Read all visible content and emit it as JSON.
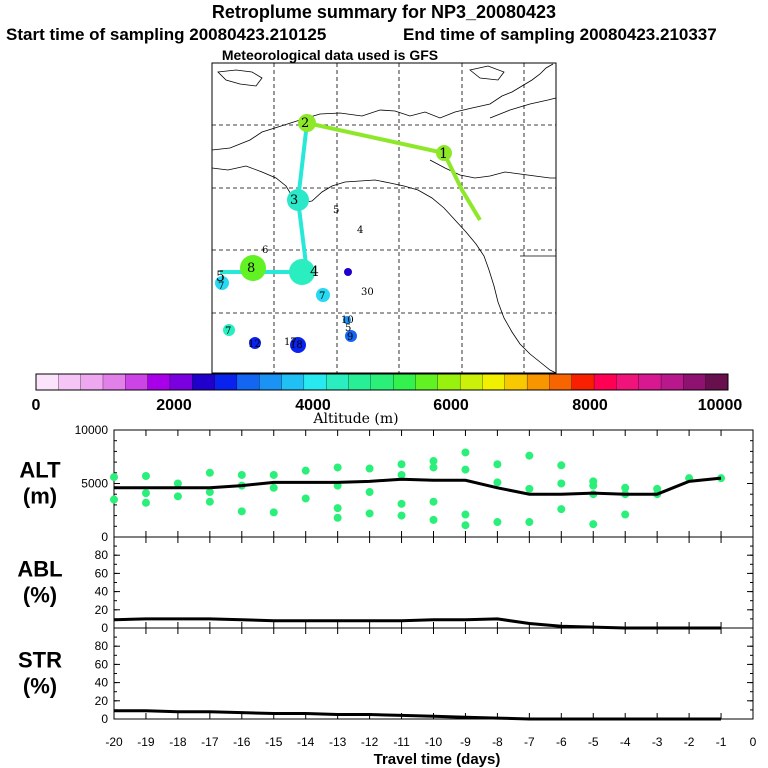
{
  "header": {
    "title": "Retroplume summary for NP3_20080423",
    "start_label": "Start time of sampling 20080423.210125",
    "end_label": "End time of sampling 20080423.210337",
    "met_label": "Meteorological data used is GFS"
  },
  "colorbar": {
    "label": "Altitude (m)",
    "ticks": [
      "0",
      "2000",
      "4000",
      "6000",
      "8000",
      "10000"
    ],
    "colors": [
      "#fbe3fb",
      "#f5c6f5",
      "#eda8ef",
      "#e080e8",
      "#cc44e6",
      "#a800e8",
      "#7a00e0",
      "#2200cc",
      "#0a22ee",
      "#1266f2",
      "#1a93f4",
      "#20c0f4",
      "#28e8f0",
      "#2aeec0",
      "#28ee95",
      "#2af07a",
      "#34f24e",
      "#62f224",
      "#98f20e",
      "#cbf00a",
      "#f0f000",
      "#f8c800",
      "#f89600",
      "#f86400",
      "#f82000",
      "#ff0055",
      "#f0147a",
      "#d81890",
      "#b8188c",
      "#901270",
      "#68104e"
    ]
  },
  "map": {
    "trajectory_labels": [
      "1",
      "2",
      "3",
      "4",
      "5",
      "8"
    ],
    "scatter_labels": [
      "4",
      "5",
      "6",
      "7",
      "7",
      "7",
      "30",
      "10",
      "5",
      "9",
      "17",
      "18",
      "12"
    ]
  },
  "colors": {
    "alt_points": "#2af07a",
    "line": "#000000",
    "path_green": "#8ee82a",
    "path_cyan": "#28e8d8"
  },
  "chart_data": [
    {
      "type": "line",
      "name": "ALT",
      "ylabel": "ALT (m)",
      "ylabel_lines": [
        "ALT",
        "(m)"
      ],
      "ylim": [
        0,
        10000
      ],
      "yticks": [
        "10000",
        "5000",
        "0"
      ],
      "x": [
        -20,
        -19,
        -18,
        -17,
        -16,
        -15,
        -14,
        -13,
        -12,
        -11,
        -10,
        -9,
        -8,
        -7,
        -6,
        -5,
        -4,
        -3,
        -2,
        -1
      ],
      "values": [
        4600,
        4600,
        4600,
        4600,
        4800,
        5100,
        5100,
        5100,
        5200,
        5400,
        5300,
        5300,
        4600,
        4000,
        4000,
        4100,
        4000,
        4000,
        5200,
        5500
      ],
      "scatter": [
        [
          -20,
          5600
        ],
        [
          -20,
          3500
        ],
        [
          -19,
          5700
        ],
        [
          -19,
          4100
        ],
        [
          -19,
          3200
        ],
        [
          -18,
          5000
        ],
        [
          -18,
          3800
        ],
        [
          -17,
          6000
        ],
        [
          -17,
          4200
        ],
        [
          -17,
          3300
        ],
        [
          -16,
          5800
        ],
        [
          -16,
          4800
        ],
        [
          -16,
          2400
        ],
        [
          -15,
          5800
        ],
        [
          -15,
          4600
        ],
        [
          -15,
          2300
        ],
        [
          -14,
          6200
        ],
        [
          -14,
          3600
        ],
        [
          -13,
          6500
        ],
        [
          -13,
          4800
        ],
        [
          -13,
          2700
        ],
        [
          -13,
          1800
        ],
        [
          -12,
          6400
        ],
        [
          -12,
          4200
        ],
        [
          -12,
          2200
        ],
        [
          -11,
          6800
        ],
        [
          -11,
          5800
        ],
        [
          -11,
          3100
        ],
        [
          -11,
          2000
        ],
        [
          -10,
          7100
        ],
        [
          -10,
          6500
        ],
        [
          -10,
          3300
        ],
        [
          -10,
          1600
        ],
        [
          -9,
          7900
        ],
        [
          -9,
          6300
        ],
        [
          -9,
          2100
        ],
        [
          -9,
          1100
        ],
        [
          -8,
          6800
        ],
        [
          -8,
          5100
        ],
        [
          -8,
          1400
        ],
        [
          -7,
          7600
        ],
        [
          -7,
          4500
        ],
        [
          -7,
          1400
        ],
        [
          -6,
          6700
        ],
        [
          -6,
          5000
        ],
        [
          -6,
          2600
        ],
        [
          -5,
          5200
        ],
        [
          -5,
          4800
        ],
        [
          -5,
          4000
        ],
        [
          -5,
          1200
        ],
        [
          -4,
          4600
        ],
        [
          -4,
          4000
        ],
        [
          -4,
          2100
        ],
        [
          -3,
          4500
        ],
        [
          -3,
          4000
        ],
        [
          -2,
          5500
        ],
        [
          -1,
          5500
        ]
      ]
    },
    {
      "type": "line",
      "name": "ABL",
      "ylabel": "ABL (%)",
      "ylabel_lines": [
        "ABL",
        "(%)"
      ],
      "ylim": [
        0,
        100
      ],
      "yticks": [
        "80",
        "60",
        "40",
        "20",
        "0"
      ],
      "x": [
        -20,
        -19,
        -18,
        -17,
        -16,
        -15,
        -14,
        -13,
        -12,
        -11,
        -10,
        -9,
        -8,
        -7,
        -6,
        -5,
        -4,
        -3,
        -2,
        -1
      ],
      "values": [
        9,
        10,
        10,
        10,
        9,
        8,
        8,
        8,
        8,
        8,
        9,
        9,
        10,
        5,
        2,
        1,
        0,
        0,
        0,
        0
      ]
    },
    {
      "type": "line",
      "name": "STR",
      "ylabel": "STR (%)",
      "ylabel_lines": [
        "STR",
        "(%)"
      ],
      "ylim": [
        0,
        100
      ],
      "yticks": [
        "80",
        "60",
        "40",
        "20",
        "0"
      ],
      "x": [
        -20,
        -19,
        -18,
        -17,
        -16,
        -15,
        -14,
        -13,
        -12,
        -11,
        -10,
        -9,
        -8,
        -7,
        -6,
        -5,
        -4,
        -3,
        -2,
        -1
      ],
      "values": [
        9,
        9,
        8,
        8,
        7,
        6,
        6,
        5,
        5,
        4,
        3,
        2,
        1,
        0,
        0,
        0,
        0,
        0,
        0,
        0
      ],
      "xlabel": "Travel time (days)",
      "xticks": [
        "-20",
        "-19",
        "-18",
        "-17",
        "-16",
        "-15",
        "-14",
        "-13",
        "-12",
        "-11",
        "-10",
        "-9",
        "-8",
        "-7",
        "-6",
        "-5",
        "-4",
        "-3",
        "-2",
        "-1",
        "0"
      ]
    }
  ]
}
